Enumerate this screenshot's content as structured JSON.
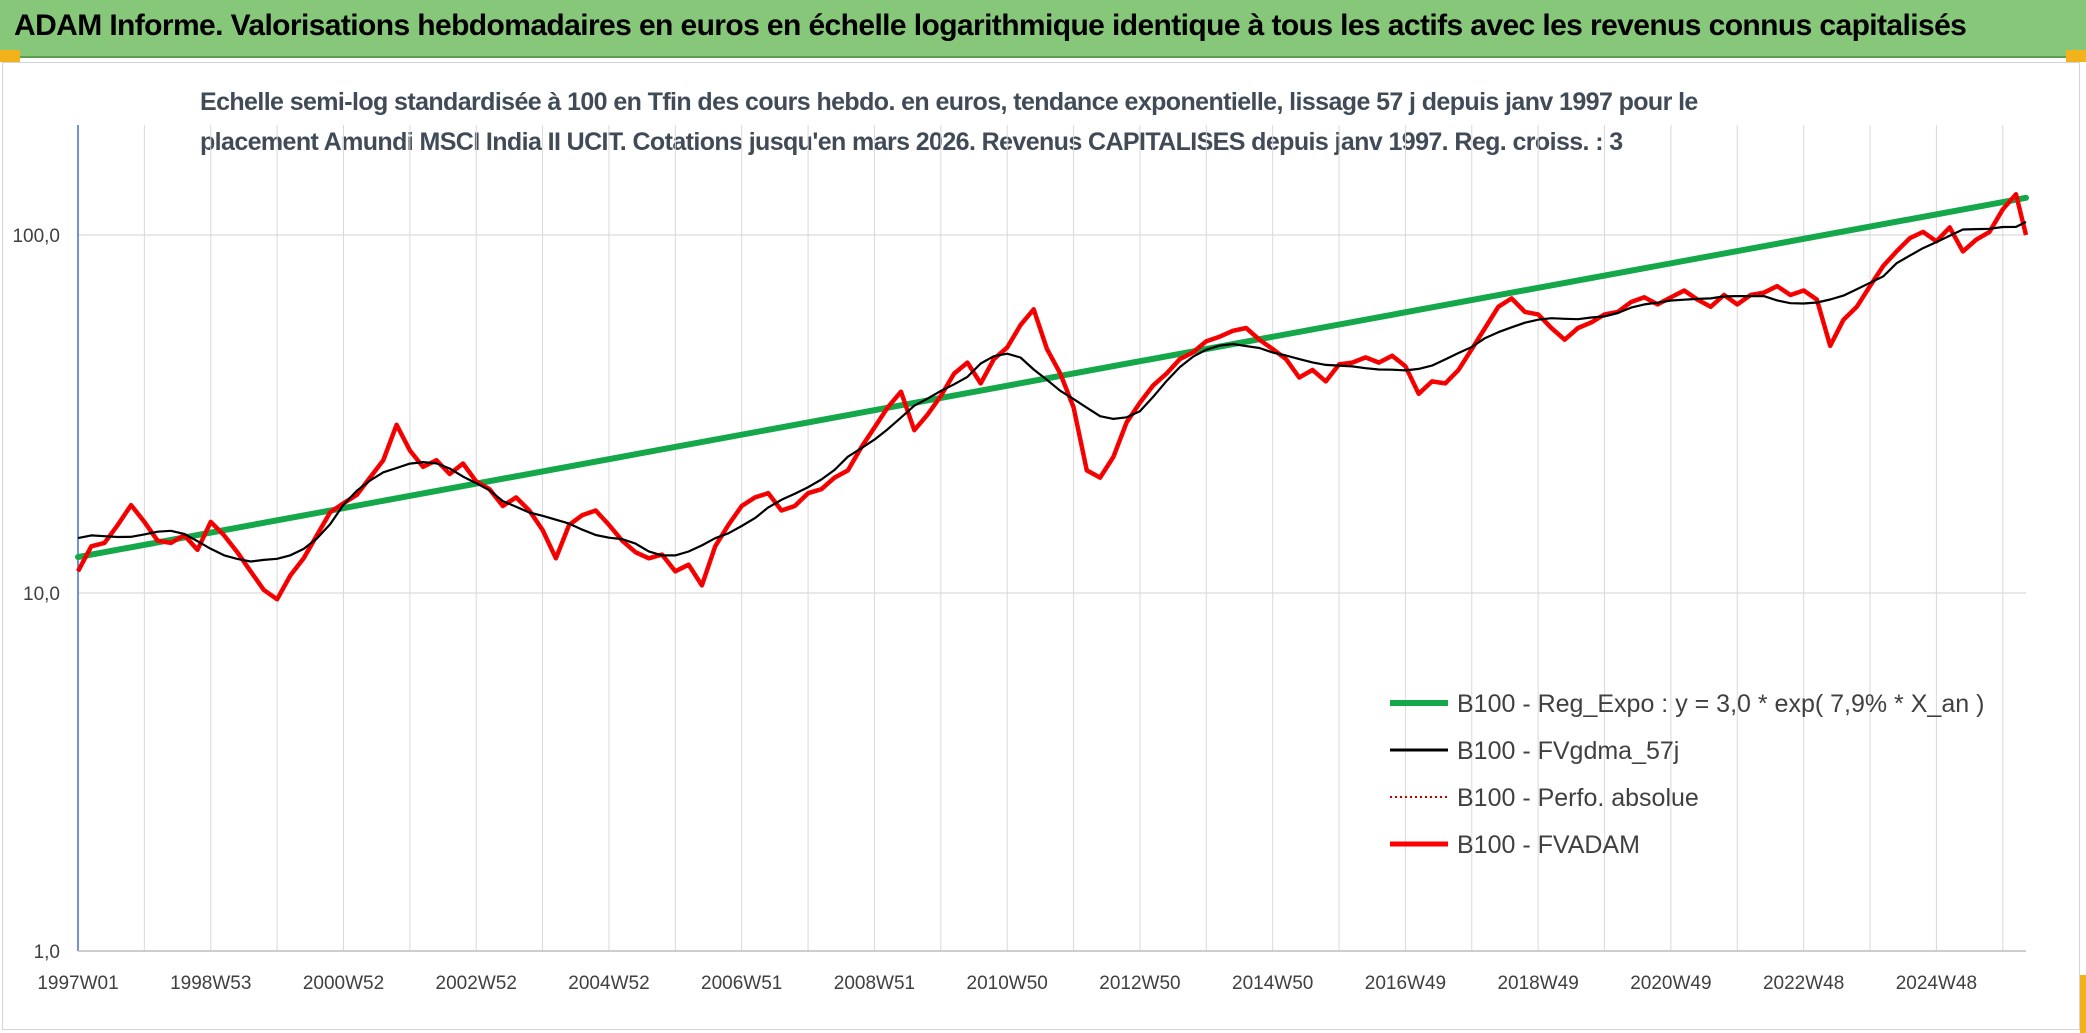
{
  "header": {
    "title": "ADAM Informe. Valorisations hebdomadaires en euros en échelle logarithmique identique à tous les actifs avec les revenus connus capitalisés"
  },
  "colors": {
    "header_bg": "#86c77a",
    "accent_corner": "#f2b21b",
    "regression": "#14a84b",
    "gdma": "#000000",
    "perfo": "#c00000",
    "fvadam": "#ff0000"
  },
  "chart_data": {
    "type": "line",
    "title_line1": "Echelle semi-log standardisée à 100 en Tfin des cours hebdo. en euros, tendance exponentielle, lissage 57 j depuis janv 1997 pour le",
    "title_line2": "placement Amundi MSCI India II UCIT. Cotations jusqu'en mars 2026. Revenus CAPITALISES depuis janv 1997. Reg. croiss. : 3",
    "y_scale": "log",
    "ylim": [
      1,
      200
    ],
    "grid": true,
    "legend_position": "right",
    "yticks": [
      {
        "value": 1,
        "label": "1,0"
      },
      {
        "value": 10,
        "label": "10,0"
      },
      {
        "value": 100,
        "label": "100,0"
      }
    ],
    "xticks": [
      {
        "t": 0.0,
        "label": "1997W01"
      },
      {
        "t": 2.0,
        "label": "1998W53"
      },
      {
        "t": 4.0,
        "label": "2000W52"
      },
      {
        "t": 6.0,
        "label": "2002W52"
      },
      {
        "t": 8.0,
        "label": "2004W52"
      },
      {
        "t": 10.0,
        "label": "2006W51"
      },
      {
        "t": 12.0,
        "label": "2008W51"
      },
      {
        "t": 14.0,
        "label": "2010W50"
      },
      {
        "t": 16.0,
        "label": "2012W50"
      },
      {
        "t": 18.0,
        "label": "2014W50"
      },
      {
        "t": 20.0,
        "label": "2016W49"
      },
      {
        "t": 22.0,
        "label": "2018W49"
      },
      {
        "t": 24.0,
        "label": "2020W49"
      },
      {
        "t": 26.0,
        "label": "2022W48"
      },
      {
        "t": 28.0,
        "label": "2024W48"
      }
    ],
    "x_max_years": 29.35,
    "x_grid_step_years": 1,
    "legend": [
      {
        "key": "regression",
        "label": "B100 - Reg_Expo : y = 3,0 * exp( 7,9% *  X_an )"
      },
      {
        "key": "gdma",
        "label": "B100 - FVgdma_57j"
      },
      {
        "key": "perfo",
        "label": "B100 - Perfo. absolue"
      },
      {
        "key": "fvadam",
        "label": "B100 - FVADAM"
      }
    ],
    "series": [
      {
        "key": "regression",
        "name": "B100 - Reg_Expo : y = 3,0 * exp( 7,9% *  X_an )",
        "points": [
          [
            0.0,
            12.6
          ],
          [
            29.35,
            127
          ]
        ]
      },
      {
        "key": "fvadam",
        "name": "B100 - FVADAM",
        "points": [
          [
            0.0,
            11.5
          ],
          [
            0.2,
            13.5
          ],
          [
            0.4,
            13.8
          ],
          [
            0.6,
            15.5
          ],
          [
            0.8,
            17.6
          ],
          [
            1.0,
            15.8
          ],
          [
            1.2,
            14.0
          ],
          [
            1.4,
            13.8
          ],
          [
            1.6,
            14.5
          ],
          [
            1.8,
            13.2
          ],
          [
            2.0,
            15.8
          ],
          [
            2.2,
            14.5
          ],
          [
            2.4,
            13.0
          ],
          [
            2.6,
            11.5
          ],
          [
            2.8,
            10.2
          ],
          [
            3.0,
            9.6
          ],
          [
            3.2,
            11.2
          ],
          [
            3.4,
            12.5
          ],
          [
            3.6,
            14.5
          ],
          [
            3.8,
            16.8
          ],
          [
            4.0,
            17.8
          ],
          [
            4.2,
            18.8
          ],
          [
            4.4,
            21.0
          ],
          [
            4.6,
            23.5
          ],
          [
            4.8,
            29.5
          ],
          [
            5.0,
            25.0
          ],
          [
            5.2,
            22.5
          ],
          [
            5.4,
            23.5
          ],
          [
            5.6,
            21.5
          ],
          [
            5.8,
            23.0
          ],
          [
            6.0,
            20.5
          ],
          [
            6.2,
            19.5
          ],
          [
            6.4,
            17.5
          ],
          [
            6.6,
            18.5
          ],
          [
            6.8,
            17.0
          ],
          [
            7.0,
            15.0
          ],
          [
            7.2,
            12.5
          ],
          [
            7.4,
            15.5
          ],
          [
            7.6,
            16.5
          ],
          [
            7.8,
            17.0
          ],
          [
            8.0,
            15.5
          ],
          [
            8.2,
            14.0
          ],
          [
            8.4,
            13.0
          ],
          [
            8.6,
            12.5
          ],
          [
            8.8,
            12.8
          ],
          [
            9.0,
            11.5
          ],
          [
            9.2,
            12.0
          ],
          [
            9.4,
            10.5
          ],
          [
            9.6,
            13.5
          ],
          [
            9.8,
            15.5
          ],
          [
            10.0,
            17.5
          ],
          [
            10.2,
            18.5
          ],
          [
            10.4,
            19.0
          ],
          [
            10.6,
            17.0
          ],
          [
            10.8,
            17.5
          ],
          [
            11.0,
            19.0
          ],
          [
            11.2,
            19.5
          ],
          [
            11.4,
            21.0
          ],
          [
            11.6,
            22.0
          ],
          [
            11.8,
            25.5
          ],
          [
            12.0,
            29.0
          ],
          [
            12.2,
            33.0
          ],
          [
            12.4,
            36.5
          ],
          [
            12.6,
            28.5
          ],
          [
            12.8,
            31.5
          ],
          [
            13.0,
            35.5
          ],
          [
            13.2,
            41.0
          ],
          [
            13.4,
            44.0
          ],
          [
            13.6,
            38.5
          ],
          [
            13.8,
            45.0
          ],
          [
            14.0,
            48.5
          ],
          [
            14.2,
            56.0
          ],
          [
            14.4,
            62.0
          ],
          [
            14.6,
            48.0
          ],
          [
            14.8,
            41.0
          ],
          [
            15.0,
            33.0
          ],
          [
            15.2,
            22.0
          ],
          [
            15.4,
            21.0
          ],
          [
            15.6,
            24.0
          ],
          [
            15.8,
            30.0
          ],
          [
            16.0,
            34.0
          ],
          [
            16.2,
            38.0
          ],
          [
            16.4,
            41.0
          ],
          [
            16.6,
            45.0
          ],
          [
            16.8,
            47.0
          ],
          [
            17.0,
            50.5
          ],
          [
            17.2,
            52.0
          ],
          [
            17.4,
            54.0
          ],
          [
            17.6,
            55.0
          ],
          [
            17.8,
            51.0
          ],
          [
            18.0,
            48.0
          ],
          [
            18.2,
            45.0
          ],
          [
            18.4,
            40.0
          ],
          [
            18.6,
            42.0
          ],
          [
            18.8,
            39.0
          ],
          [
            19.0,
            43.5
          ],
          [
            19.2,
            44.0
          ],
          [
            19.4,
            45.5
          ],
          [
            19.6,
            44.0
          ],
          [
            19.8,
            46.0
          ],
          [
            20.0,
            43.0
          ],
          [
            20.2,
            36.0
          ],
          [
            20.4,
            39.0
          ],
          [
            20.6,
            38.5
          ],
          [
            20.8,
            42.0
          ],
          [
            21.0,
            48.0
          ],
          [
            21.2,
            55.0
          ],
          [
            21.4,
            63.0
          ],
          [
            21.6,
            66.5
          ],
          [
            21.8,
            61.0
          ],
          [
            22.0,
            60.0
          ],
          [
            22.2,
            55.0
          ],
          [
            22.4,
            51.0
          ],
          [
            22.6,
            55.0
          ],
          [
            22.8,
            57.0
          ],
          [
            23.0,
            60.0
          ],
          [
            23.2,
            61.0
          ],
          [
            23.4,
            65.0
          ],
          [
            23.6,
            67.0
          ],
          [
            23.8,
            64.0
          ],
          [
            24.0,
            67.0
          ],
          [
            24.2,
            70.0
          ],
          [
            24.4,
            66.0
          ],
          [
            24.6,
            63.0
          ],
          [
            24.8,
            68.0
          ],
          [
            25.0,
            64.0
          ],
          [
            25.2,
            68.0
          ],
          [
            25.4,
            69.0
          ],
          [
            25.6,
            72.0
          ],
          [
            25.8,
            68.0
          ],
          [
            26.0,
            70.0
          ],
          [
            26.2,
            66.0
          ],
          [
            26.4,
            49.0
          ],
          [
            26.6,
            58.0
          ],
          [
            26.8,
            63.0
          ],
          [
            27.0,
            72.0
          ],
          [
            27.2,
            82.0
          ],
          [
            27.4,
            90.0
          ],
          [
            27.6,
            98.0
          ],
          [
            27.8,
            102.0
          ],
          [
            28.0,
            96.0
          ],
          [
            28.2,
            105.0
          ],
          [
            28.4,
            90.0
          ],
          [
            28.6,
            97.0
          ],
          [
            28.8,
            102.0
          ],
          [
            29.0,
            118.0
          ],
          [
            29.2,
            130.0
          ],
          [
            29.35,
            100.0
          ]
        ]
      }
    ],
    "gdma_window_points": 4
  }
}
